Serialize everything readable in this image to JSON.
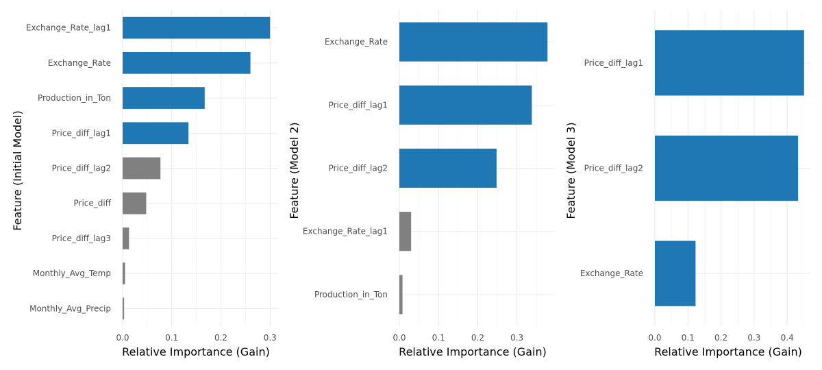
{
  "colors": {
    "highlight": "#1f77b4",
    "other": "#808080",
    "grid_major": "#ebebeb",
    "grid_minor": "#f4f4f4",
    "tick_text": "#4d4d4d"
  },
  "chart_data": [
    {
      "type": "bar",
      "orientation": "horizontal",
      "xlabel": "Relative Importance (Gain)",
      "ylabel": "Feature (Initial Model)",
      "xlim": [
        0,
        0.315
      ],
      "xticks": [
        0.0,
        0.1,
        0.2,
        0.3
      ],
      "xtick_labels": [
        "0.0",
        "0.1",
        "0.2",
        "0.3"
      ],
      "grid": true,
      "categories": [
        "Exchange_Rate_lag1",
        "Exchange_Rate",
        "Production_in_Ton",
        "Price_diff_lag1",
        "Price_diff_lag2",
        "Price_diff",
        "Price_diff_lag3",
        "Monthly_Avg_Temp",
        "Monthly_Avg_Precip"
      ],
      "values": [
        0.3,
        0.26,
        0.167,
        0.134,
        0.077,
        0.048,
        0.013,
        0.005,
        0.003
      ],
      "highlighted": [
        true,
        true,
        true,
        true,
        false,
        false,
        false,
        false,
        false
      ]
    },
    {
      "type": "bar",
      "orientation": "horizontal",
      "xlabel": "Relative Importance (Gain)",
      "ylabel": "Feature (Model 2)",
      "xlim": [
        0,
        0.395
      ],
      "xticks": [
        0.0,
        0.1,
        0.2,
        0.3
      ],
      "xtick_labels": [
        "0.0",
        "0.1",
        "0.2",
        "0.3"
      ],
      "grid": true,
      "categories": [
        "Exchange_Rate",
        "Price_diff_lag1",
        "Price_diff_lag2",
        "Exchange_Rate_lag1",
        "Production_in_Ton"
      ],
      "values": [
        0.378,
        0.338,
        0.248,
        0.03,
        0.008
      ],
      "highlighted": [
        true,
        true,
        true,
        false,
        false
      ]
    },
    {
      "type": "bar",
      "orientation": "horizontal",
      "xlabel": "Relative Importance (Gain)",
      "ylabel": "Feature (Model 3)",
      "xlim": [
        0,
        0.47
      ],
      "xticks": [
        0.0,
        0.1,
        0.2,
        0.3,
        0.4
      ],
      "xtick_labels": [
        "0.0",
        "0.1",
        "0.2",
        "0.3",
        "0.4"
      ],
      "grid": true,
      "categories": [
        "Price_diff_lag1",
        "Price_diff_lag2",
        "Exchange_Rate"
      ],
      "values": [
        0.451,
        0.433,
        0.123
      ],
      "highlighted": [
        true,
        true,
        true
      ]
    }
  ]
}
